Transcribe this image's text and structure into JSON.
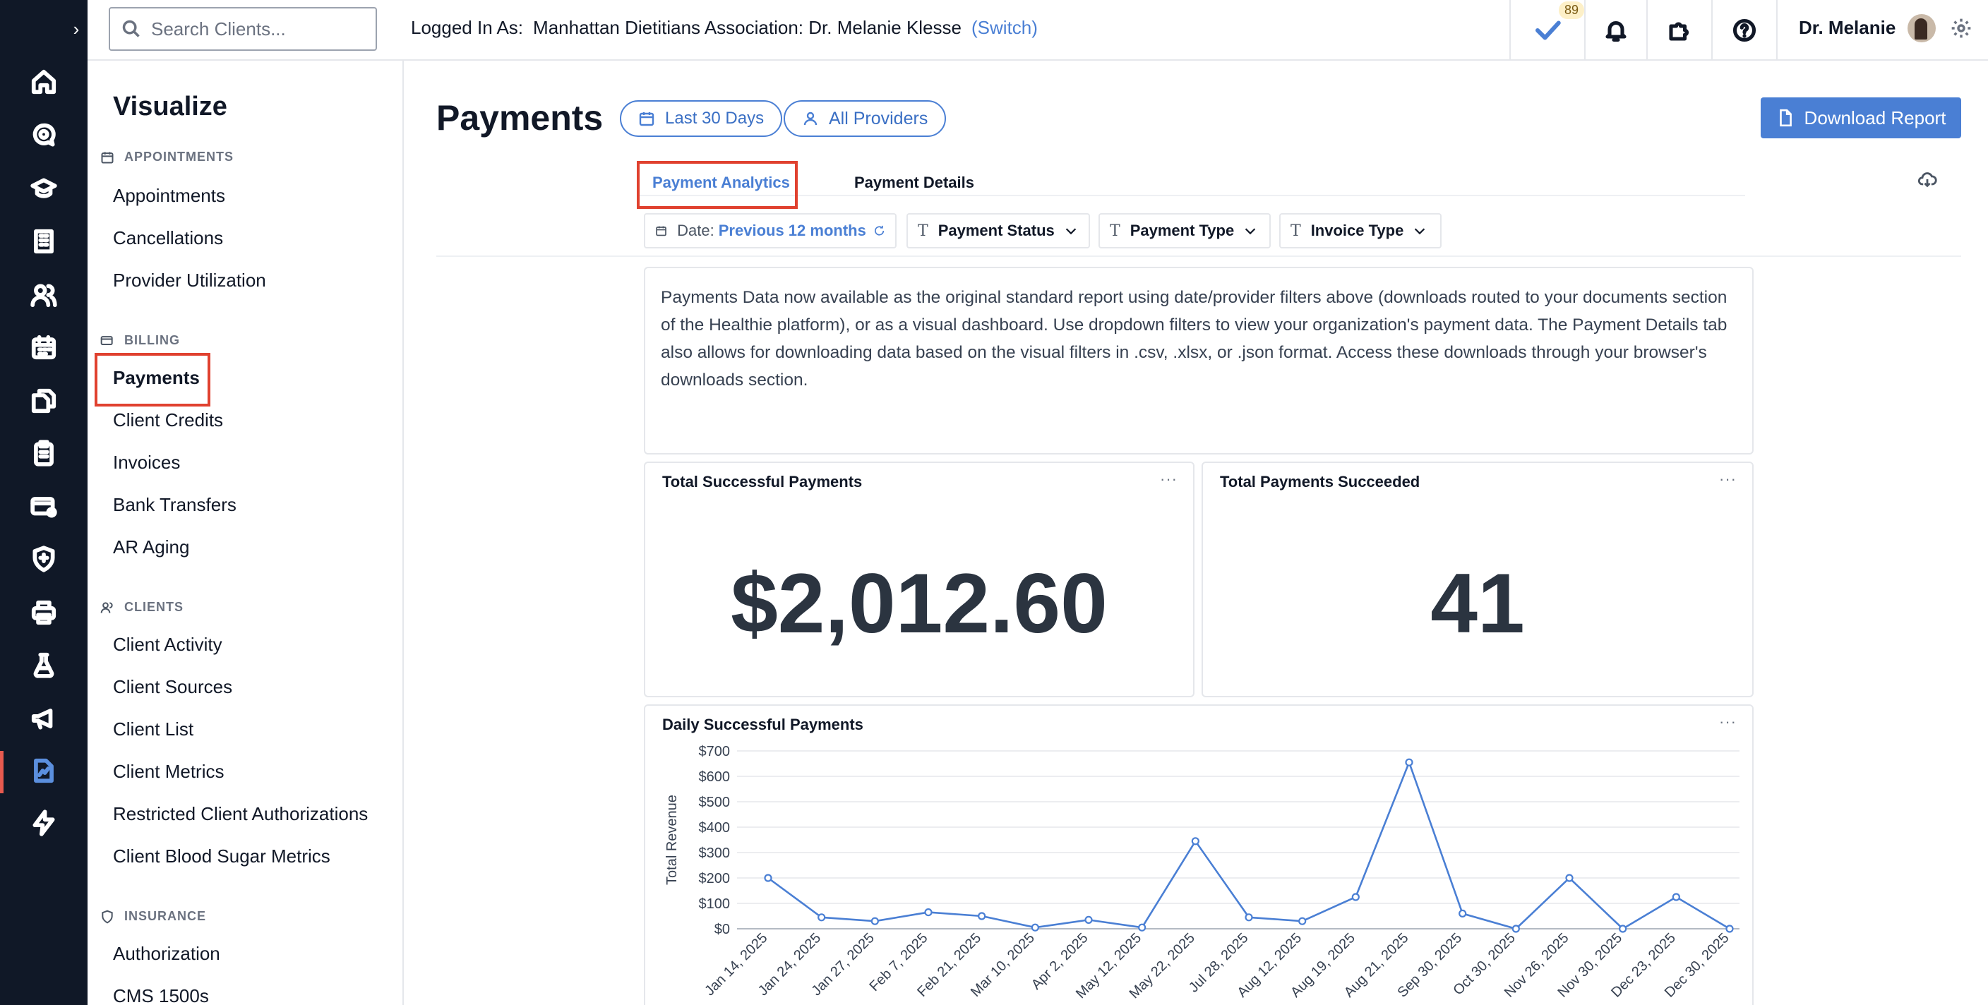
{
  "search": {
    "placeholder": "Search Clients..."
  },
  "login": {
    "prefix": "Logged In As:",
    "org": "Manhattan Dietitians Association: Dr. Melanie Klesse",
    "switch": "(Switch)"
  },
  "topbar": {
    "tasks_count": "89",
    "user_name": "Dr. Melanie"
  },
  "sidebar": {
    "title": "Visualize",
    "sections": {
      "appointments": {
        "label": "APPOINTMENTS",
        "items": [
          "Appointments",
          "Cancellations",
          "Provider Utilization"
        ]
      },
      "billing": {
        "label": "BILLING",
        "items": [
          "Payments",
          "Client Credits",
          "Invoices",
          "Bank Transfers",
          "AR Aging"
        ]
      },
      "clients": {
        "label": "CLIENTS",
        "items": [
          "Client Activity",
          "Client Sources",
          "Client List",
          "Client Metrics",
          "Restricted Client Authorizations",
          "Client Blood Sugar Metrics"
        ]
      },
      "insurance": {
        "label": "INSURANCE",
        "items": [
          "Authorization",
          "CMS 1500s"
        ]
      }
    }
  },
  "page": {
    "title": "Payments",
    "date_range": "Last 30 Days",
    "providers": "All Providers",
    "download": "Download Report"
  },
  "tabs": [
    "Payment Analytics",
    "Payment Details"
  ],
  "filters": {
    "date_label": "Date:",
    "date_value": "Previous 12 months",
    "payment_status": "Payment Status",
    "payment_type": "Payment Type",
    "invoice_type": "Invoice Type"
  },
  "note": "Payments Data now available as the original standard report using date/provider filters above (downloads routed to your documents section of the Healthie platform), or as a visual dashboard. Use dropdown filters to view your organization's payment data. The Payment Details tab also allows for downloading data based on the visual filters in .csv, .xlsx, or .json format. Access these downloads through your browser's downloads section.",
  "kpis": {
    "total_successful_payments": {
      "title": "Total Successful Payments",
      "value": "$2,012.60"
    },
    "total_payments_succeeded": {
      "title": "Total Payments Succeeded",
      "value": "41"
    }
  },
  "colors": {
    "accent": "#4a7fd4",
    "rail": "#101827",
    "highlight": "#e0412f"
  },
  "chart_data": {
    "type": "line",
    "title": "Daily Successful Payments",
    "ylabel": "Total Revenue",
    "xlabel": "",
    "ylim": [
      0,
      700
    ],
    "yticks": [
      "$0",
      "$100",
      "$200",
      "$300",
      "$400",
      "$500",
      "$600",
      "$700"
    ],
    "grid": true,
    "x": [
      "Jan 14, 2025",
      "Jan 24, 2025",
      "Jan 27, 2025",
      "Feb 7, 2025",
      "Feb 21, 2025",
      "Mar 10, 2025",
      "Apr 2, 2025",
      "May 12, 2025",
      "May 22, 2025",
      "Jul 28, 2025",
      "Aug 12, 2025",
      "Aug 19, 2025",
      "Aug 21, 2025",
      "Sep 30, 2025",
      "Oct 30, 2025",
      "Nov 26, 2025",
      "Nov 30, 2025",
      "Dec 23, 2025",
      "Dec 30, 2025"
    ],
    "series": [
      {
        "name": "",
        "color": "#4a7fd4",
        "values": [
          200,
          45,
          30,
          65,
          50,
          5,
          35,
          5,
          345,
          45,
          30,
          125,
          655,
          60,
          0,
          200,
          0,
          125,
          0
        ]
      }
    ]
  }
}
